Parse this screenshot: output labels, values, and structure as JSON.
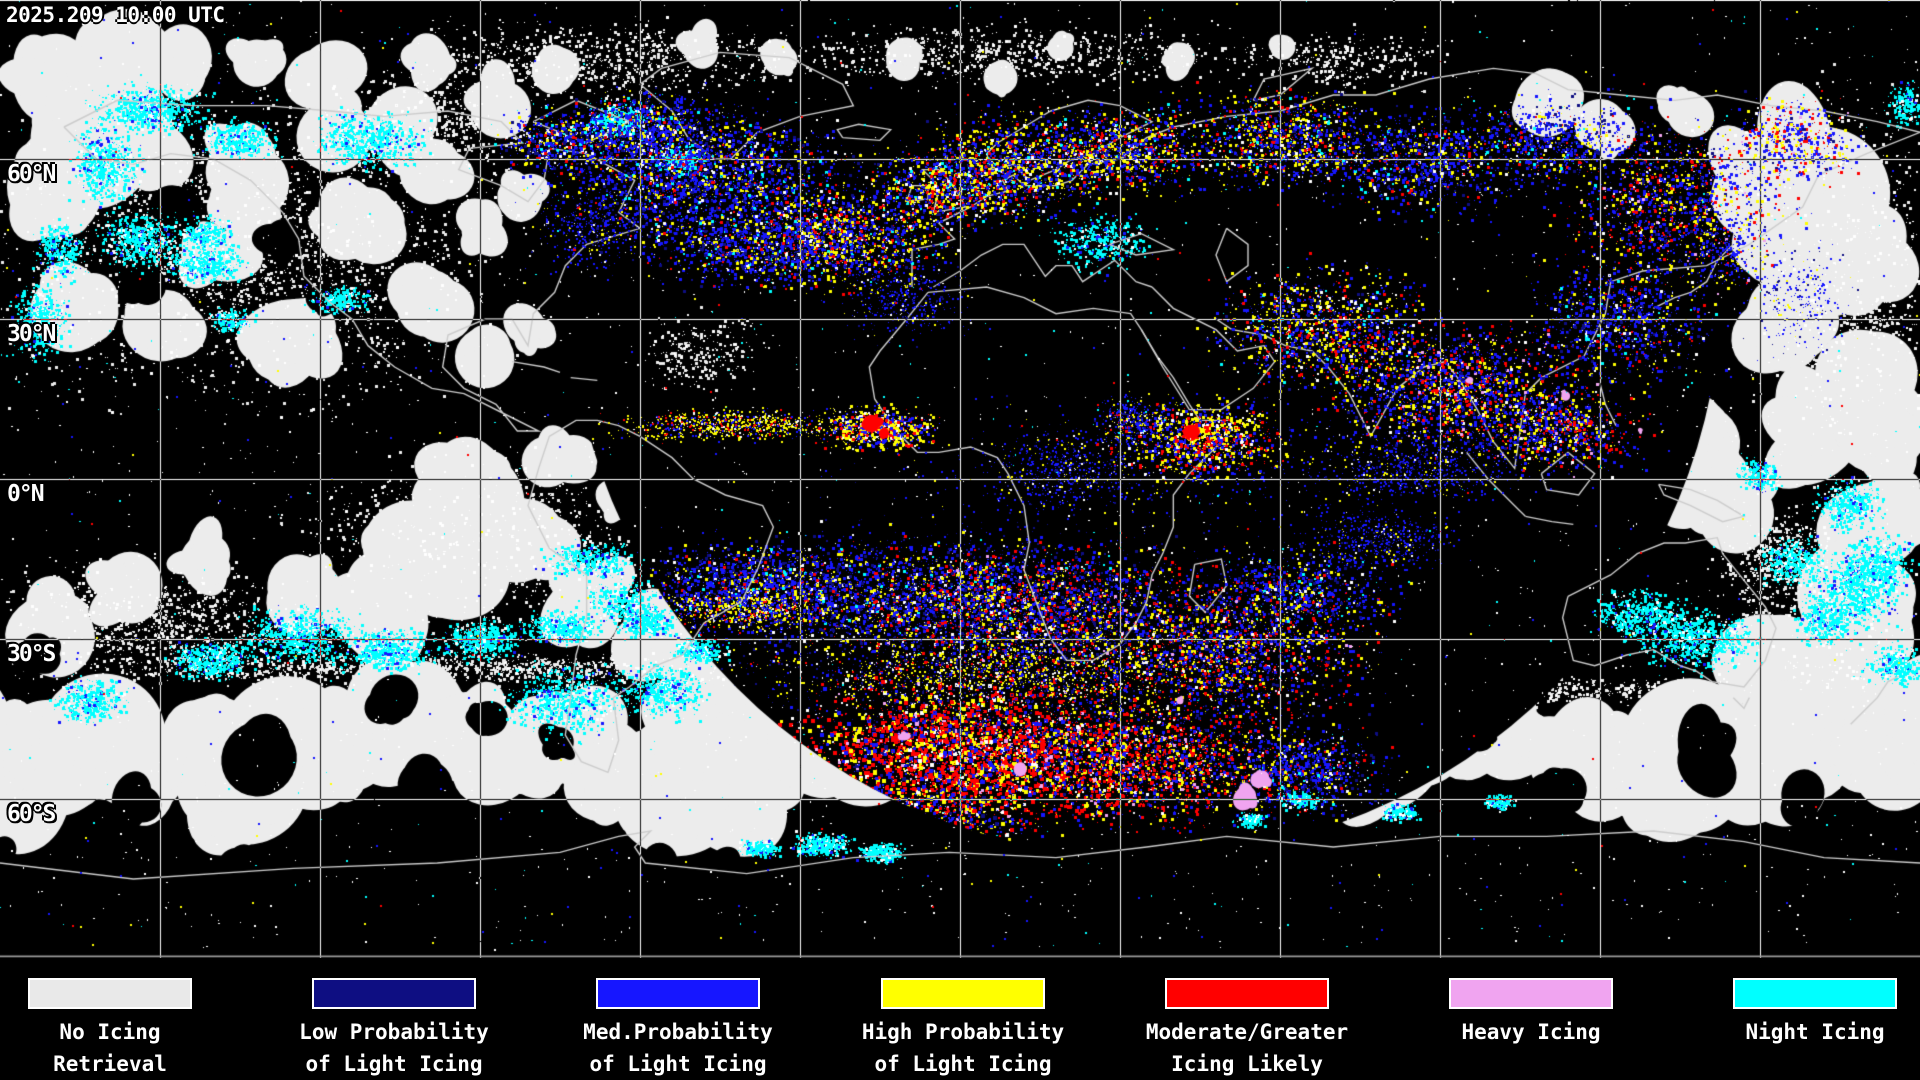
{
  "header": {
    "timestamp": "2025.209 10:00 UTC"
  },
  "map": {
    "latitude_labels": [
      "60°N",
      "30°N",
      "0°N",
      "30°S",
      "60°S"
    ],
    "grid": {
      "lon_step_deg": 30,
      "lat_step_deg": 30,
      "line_color": "#ffffff"
    },
    "palette": {
      "background": "#000000",
      "cloud": "#ececec",
      "cloud_bright": "#ffffff",
      "coastline": "#cccccc",
      "no_icing": "#e9e9e9",
      "low_prob": "#0e0e82",
      "med_prob": "#1616ff",
      "high_prob": "#ffff00",
      "moderate": "#ff0000",
      "heavy": "#f0a4f0",
      "night": "#00ffff"
    }
  },
  "legend": {
    "items": [
      {
        "name": "no-icing-retrieval",
        "color": "#e9e9e9",
        "line1": "No Icing",
        "line2": "Retrieval"
      },
      {
        "name": "low-probability",
        "color": "#0e0e82",
        "line1": "Low Probability",
        "line2": "of Light Icing"
      },
      {
        "name": "med-probability",
        "color": "#1616ff",
        "line1": "Med.Probability",
        "line2": "of Light Icing"
      },
      {
        "name": "high-probability",
        "color": "#ffff00",
        "line1": "High Probability",
        "line2": "of Light Icing"
      },
      {
        "name": "moderate-greater",
        "color": "#ff0000",
        "line1": "Moderate/Greater",
        "line2": "Icing Likely"
      },
      {
        "name": "heavy-icing",
        "color": "#f0a4f0",
        "line1": "Heavy Icing",
        "line2": ""
      },
      {
        "name": "night-icing",
        "color": "#00ffff",
        "line1": "Night Icing",
        "line2": ""
      }
    ]
  }
}
